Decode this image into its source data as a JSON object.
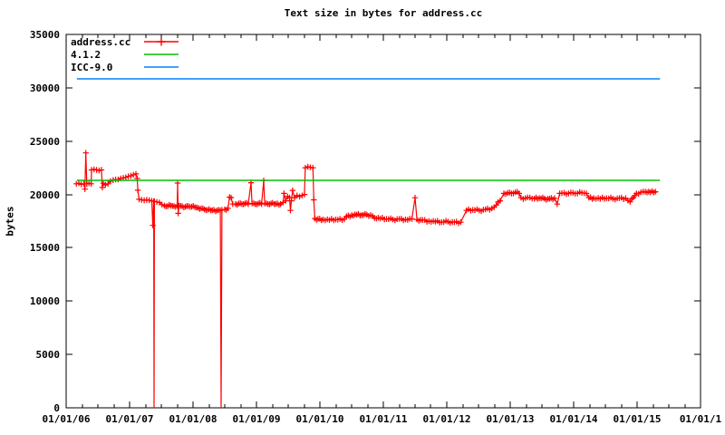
{
  "title": "Text size in bytes for address.cc",
  "ylabel": "bytes",
  "legend": [
    {
      "label": "address.cc",
      "color": "#ff0000",
      "sample": "plus-line"
    },
    {
      "label": "4.1.2",
      "color": "#00c000",
      "sample": "line"
    },
    {
      "label": "ICC-9.0",
      "color": "#0080ff",
      "sample": "line"
    }
  ],
  "colors": {
    "series_red": "#ff0000",
    "series_green": "#00c000",
    "series_blue": "#0080ff",
    "axis": "#000000",
    "background": "#ffffff"
  },
  "chart_data": {
    "type": "line",
    "title": "Text size in bytes for address.cc",
    "xlabel": "",
    "ylabel": "bytes",
    "xlim": [
      2006,
      2016
    ],
    "ylim": [
      0,
      35000
    ],
    "x_unit": "decimal_year",
    "grid": false,
    "legend_position": "top-left-inside",
    "x_minor_interval": 0.25,
    "x_ticks": [
      {
        "v": 2006,
        "label": "01/01/06"
      },
      {
        "v": 2007,
        "label": "01/01/07"
      },
      {
        "v": 2008,
        "label": "01/01/08"
      },
      {
        "v": 2009,
        "label": "01/01/09"
      },
      {
        "v": 2010,
        "label": "01/01/10"
      },
      {
        "v": 2011,
        "label": "01/01/11"
      },
      {
        "v": 2012,
        "label": "01/01/12"
      },
      {
        "v": 2013,
        "label": "01/01/13"
      },
      {
        "v": 2014,
        "label": "01/01/14"
      },
      {
        "v": 2015,
        "label": "01/01/15"
      },
      {
        "v": 2016,
        "label": "01/01/1"
      }
    ],
    "y_ticks": [
      {
        "v": 0,
        "label": "0"
      },
      {
        "v": 5000,
        "label": "5000"
      },
      {
        "v": 10000,
        "label": "10000"
      },
      {
        "v": 15000,
        "label": "15000"
      },
      {
        "v": 20000,
        "label": "20000"
      },
      {
        "v": 25000,
        "label": "25000"
      },
      {
        "v": 30000,
        "label": "30000"
      },
      {
        "v": 35000,
        "label": "35000"
      }
    ],
    "series": [
      {
        "name": "address.cc",
        "color": "#ff0000",
        "style": "linespoints",
        "marker": "plus",
        "points": [
          [
            2006.16,
            21000
          ],
          [
            2006.2,
            21050
          ],
          [
            2006.24,
            20950
          ],
          [
            2006.28,
            21000
          ],
          [
            2006.295,
            20500
          ],
          [
            2006.31,
            23900
          ],
          [
            2006.325,
            21000
          ],
          [
            2006.36,
            21050
          ],
          [
            2006.395,
            21000
          ],
          [
            2006.4,
            22300
          ],
          [
            2006.44,
            22350
          ],
          [
            2006.48,
            22300
          ],
          [
            2006.52,
            22250
          ],
          [
            2006.555,
            22300
          ],
          [
            2006.57,
            20650
          ],
          [
            2006.585,
            21050
          ],
          [
            2006.62,
            20900
          ],
          [
            2006.66,
            21000
          ],
          [
            2006.7,
            21250
          ],
          [
            2006.74,
            21350
          ],
          [
            2006.78,
            21400
          ],
          [
            2006.82,
            21400
          ],
          [
            2006.86,
            21500
          ],
          [
            2006.9,
            21550
          ],
          [
            2006.94,
            21600
          ],
          [
            2006.98,
            21700
          ],
          [
            2007.02,
            21750
          ],
          [
            2007.06,
            21850
          ],
          [
            2007.1,
            21930
          ],
          [
            2007.12,
            21500
          ],
          [
            2007.13,
            20400
          ],
          [
            2007.15,
            19550
          ],
          [
            2007.19,
            19500
          ],
          [
            2007.23,
            19450
          ],
          [
            2007.27,
            19500
          ],
          [
            2007.31,
            19450
          ],
          [
            2007.35,
            19400
          ],
          [
            2007.365,
            17100
          ],
          [
            2007.38,
            19350
          ],
          [
            2007.386,
            0
          ],
          [
            2007.392,
            19350
          ],
          [
            2007.43,
            19300
          ],
          [
            2007.47,
            19250
          ],
          [
            2007.51,
            19050
          ],
          [
            2007.55,
            18950
          ],
          [
            2007.6,
            18900
          ],
          [
            2007.65,
            18950
          ],
          [
            2007.7,
            18900
          ],
          [
            2007.75,
            18950
          ],
          [
            2007.757,
            21070
          ],
          [
            2007.765,
            18230
          ],
          [
            2007.78,
            18950
          ],
          [
            2007.83,
            18900
          ],
          [
            2007.88,
            18850
          ],
          [
            2007.93,
            18900
          ],
          [
            2007.98,
            18850
          ],
          [
            2008.03,
            18800
          ],
          [
            2008.08,
            18750
          ],
          [
            2008.13,
            18700
          ],
          [
            2008.18,
            18600
          ],
          [
            2008.23,
            18550
          ],
          [
            2008.28,
            18500
          ],
          [
            2008.33,
            18550
          ],
          [
            2008.38,
            18500
          ],
          [
            2008.43,
            18500
          ],
          [
            2008.443,
            0
          ],
          [
            2008.456,
            18550
          ],
          [
            2008.5,
            18600
          ],
          [
            2008.55,
            18700
          ],
          [
            2008.575,
            19750
          ],
          [
            2008.6,
            19700
          ],
          [
            2008.625,
            19100
          ],
          [
            2008.67,
            19100
          ],
          [
            2008.72,
            19150
          ],
          [
            2008.77,
            19100
          ],
          [
            2008.82,
            19150
          ],
          [
            2008.87,
            19100
          ],
          [
            2008.914,
            21100
          ],
          [
            2008.93,
            19150
          ],
          [
            2008.98,
            19100
          ],
          [
            2009.03,
            19150
          ],
          [
            2009.08,
            19100
          ],
          [
            2009.114,
            21300
          ],
          [
            2009.13,
            19150
          ],
          [
            2009.18,
            19100
          ],
          [
            2009.23,
            19150
          ],
          [
            2009.28,
            19100
          ],
          [
            2009.33,
            19150
          ],
          [
            2009.38,
            19100
          ],
          [
            2009.42,
            19250
          ],
          [
            2009.435,
            20100
          ],
          [
            2009.46,
            19400
          ],
          [
            2009.49,
            19800
          ],
          [
            2009.52,
            19700
          ],
          [
            2009.535,
            18500
          ],
          [
            2009.55,
            19400
          ],
          [
            2009.57,
            20380
          ],
          [
            2009.6,
            19700
          ],
          [
            2009.64,
            19900
          ],
          [
            2009.68,
            19800
          ],
          [
            2009.72,
            19900
          ],
          [
            2009.755,
            20000
          ],
          [
            2009.77,
            22500
          ],
          [
            2009.81,
            22600
          ],
          [
            2009.85,
            22550
          ],
          [
            2009.89,
            22500
          ],
          [
            2009.905,
            19500
          ],
          [
            2009.92,
            17750
          ],
          [
            2009.97,
            17700
          ],
          [
            2010.05,
            17650
          ],
          [
            2010.15,
            17600
          ],
          [
            2010.25,
            17650
          ],
          [
            2010.35,
            17600
          ],
          [
            2010.42,
            17950
          ],
          [
            2010.5,
            18050
          ],
          [
            2010.58,
            18100
          ],
          [
            2010.66,
            18050
          ],
          [
            2010.74,
            18100
          ],
          [
            2010.8,
            18050
          ],
          [
            2010.86,
            17800
          ],
          [
            2010.95,
            17750
          ],
          [
            2011.05,
            17700
          ],
          [
            2011.15,
            17650
          ],
          [
            2011.25,
            17700
          ],
          [
            2011.35,
            17650
          ],
          [
            2011.45,
            17700
          ],
          [
            2011.5,
            19690
          ],
          [
            2011.53,
            17650
          ],
          [
            2011.62,
            17600
          ],
          [
            2011.72,
            17500
          ],
          [
            2011.82,
            17450
          ],
          [
            2011.92,
            17400
          ],
          [
            2012.02,
            17450
          ],
          [
            2012.12,
            17400
          ],
          [
            2012.22,
            17400
          ],
          [
            2012.31,
            18500
          ],
          [
            2012.41,
            18550
          ],
          [
            2012.51,
            18500
          ],
          [
            2012.61,
            18600
          ],
          [
            2012.71,
            18700
          ],
          [
            2012.78,
            19000
          ],
          [
            2012.84,
            19400
          ],
          [
            2012.9,
            20100
          ],
          [
            2012.96,
            20150
          ],
          [
            2013.02,
            20100
          ],
          [
            2013.08,
            20200
          ],
          [
            2013.14,
            20100
          ],
          [
            2013.17,
            19700
          ],
          [
            2013.24,
            19650
          ],
          [
            2013.31,
            19700
          ],
          [
            2013.38,
            19600
          ],
          [
            2013.46,
            19650
          ],
          [
            2013.54,
            19600
          ],
          [
            2013.62,
            19600
          ],
          [
            2013.7,
            19650
          ],
          [
            2013.74,
            19100
          ],
          [
            2013.78,
            20100
          ],
          [
            2013.85,
            20150
          ],
          [
            2013.92,
            20100
          ],
          [
            2013.99,
            20150
          ],
          [
            2014.06,
            20100
          ],
          [
            2014.13,
            20150
          ],
          [
            2014.2,
            20100
          ],
          [
            2014.24,
            19700
          ],
          [
            2014.32,
            19650
          ],
          [
            2014.42,
            19600
          ],
          [
            2014.52,
            19650
          ],
          [
            2014.62,
            19600
          ],
          [
            2014.72,
            19650
          ],
          [
            2014.82,
            19650
          ],
          [
            2014.89,
            19300
          ],
          [
            2014.94,
            19700
          ],
          [
            2014.99,
            20100
          ],
          [
            2015.06,
            20200
          ],
          [
            2015.13,
            20250
          ],
          [
            2015.21,
            20200
          ],
          [
            2015.29,
            20250
          ]
        ]
      },
      {
        "name": "4.1.2",
        "color": "#00c000",
        "style": "hline",
        "value": 21320,
        "x_range": [
          2006.17,
          2015.36
        ]
      },
      {
        "name": "ICC-9.0",
        "color": "#0080ff",
        "style": "hline",
        "value": 30840,
        "x_range": [
          2006.17,
          2015.36
        ]
      }
    ]
  }
}
